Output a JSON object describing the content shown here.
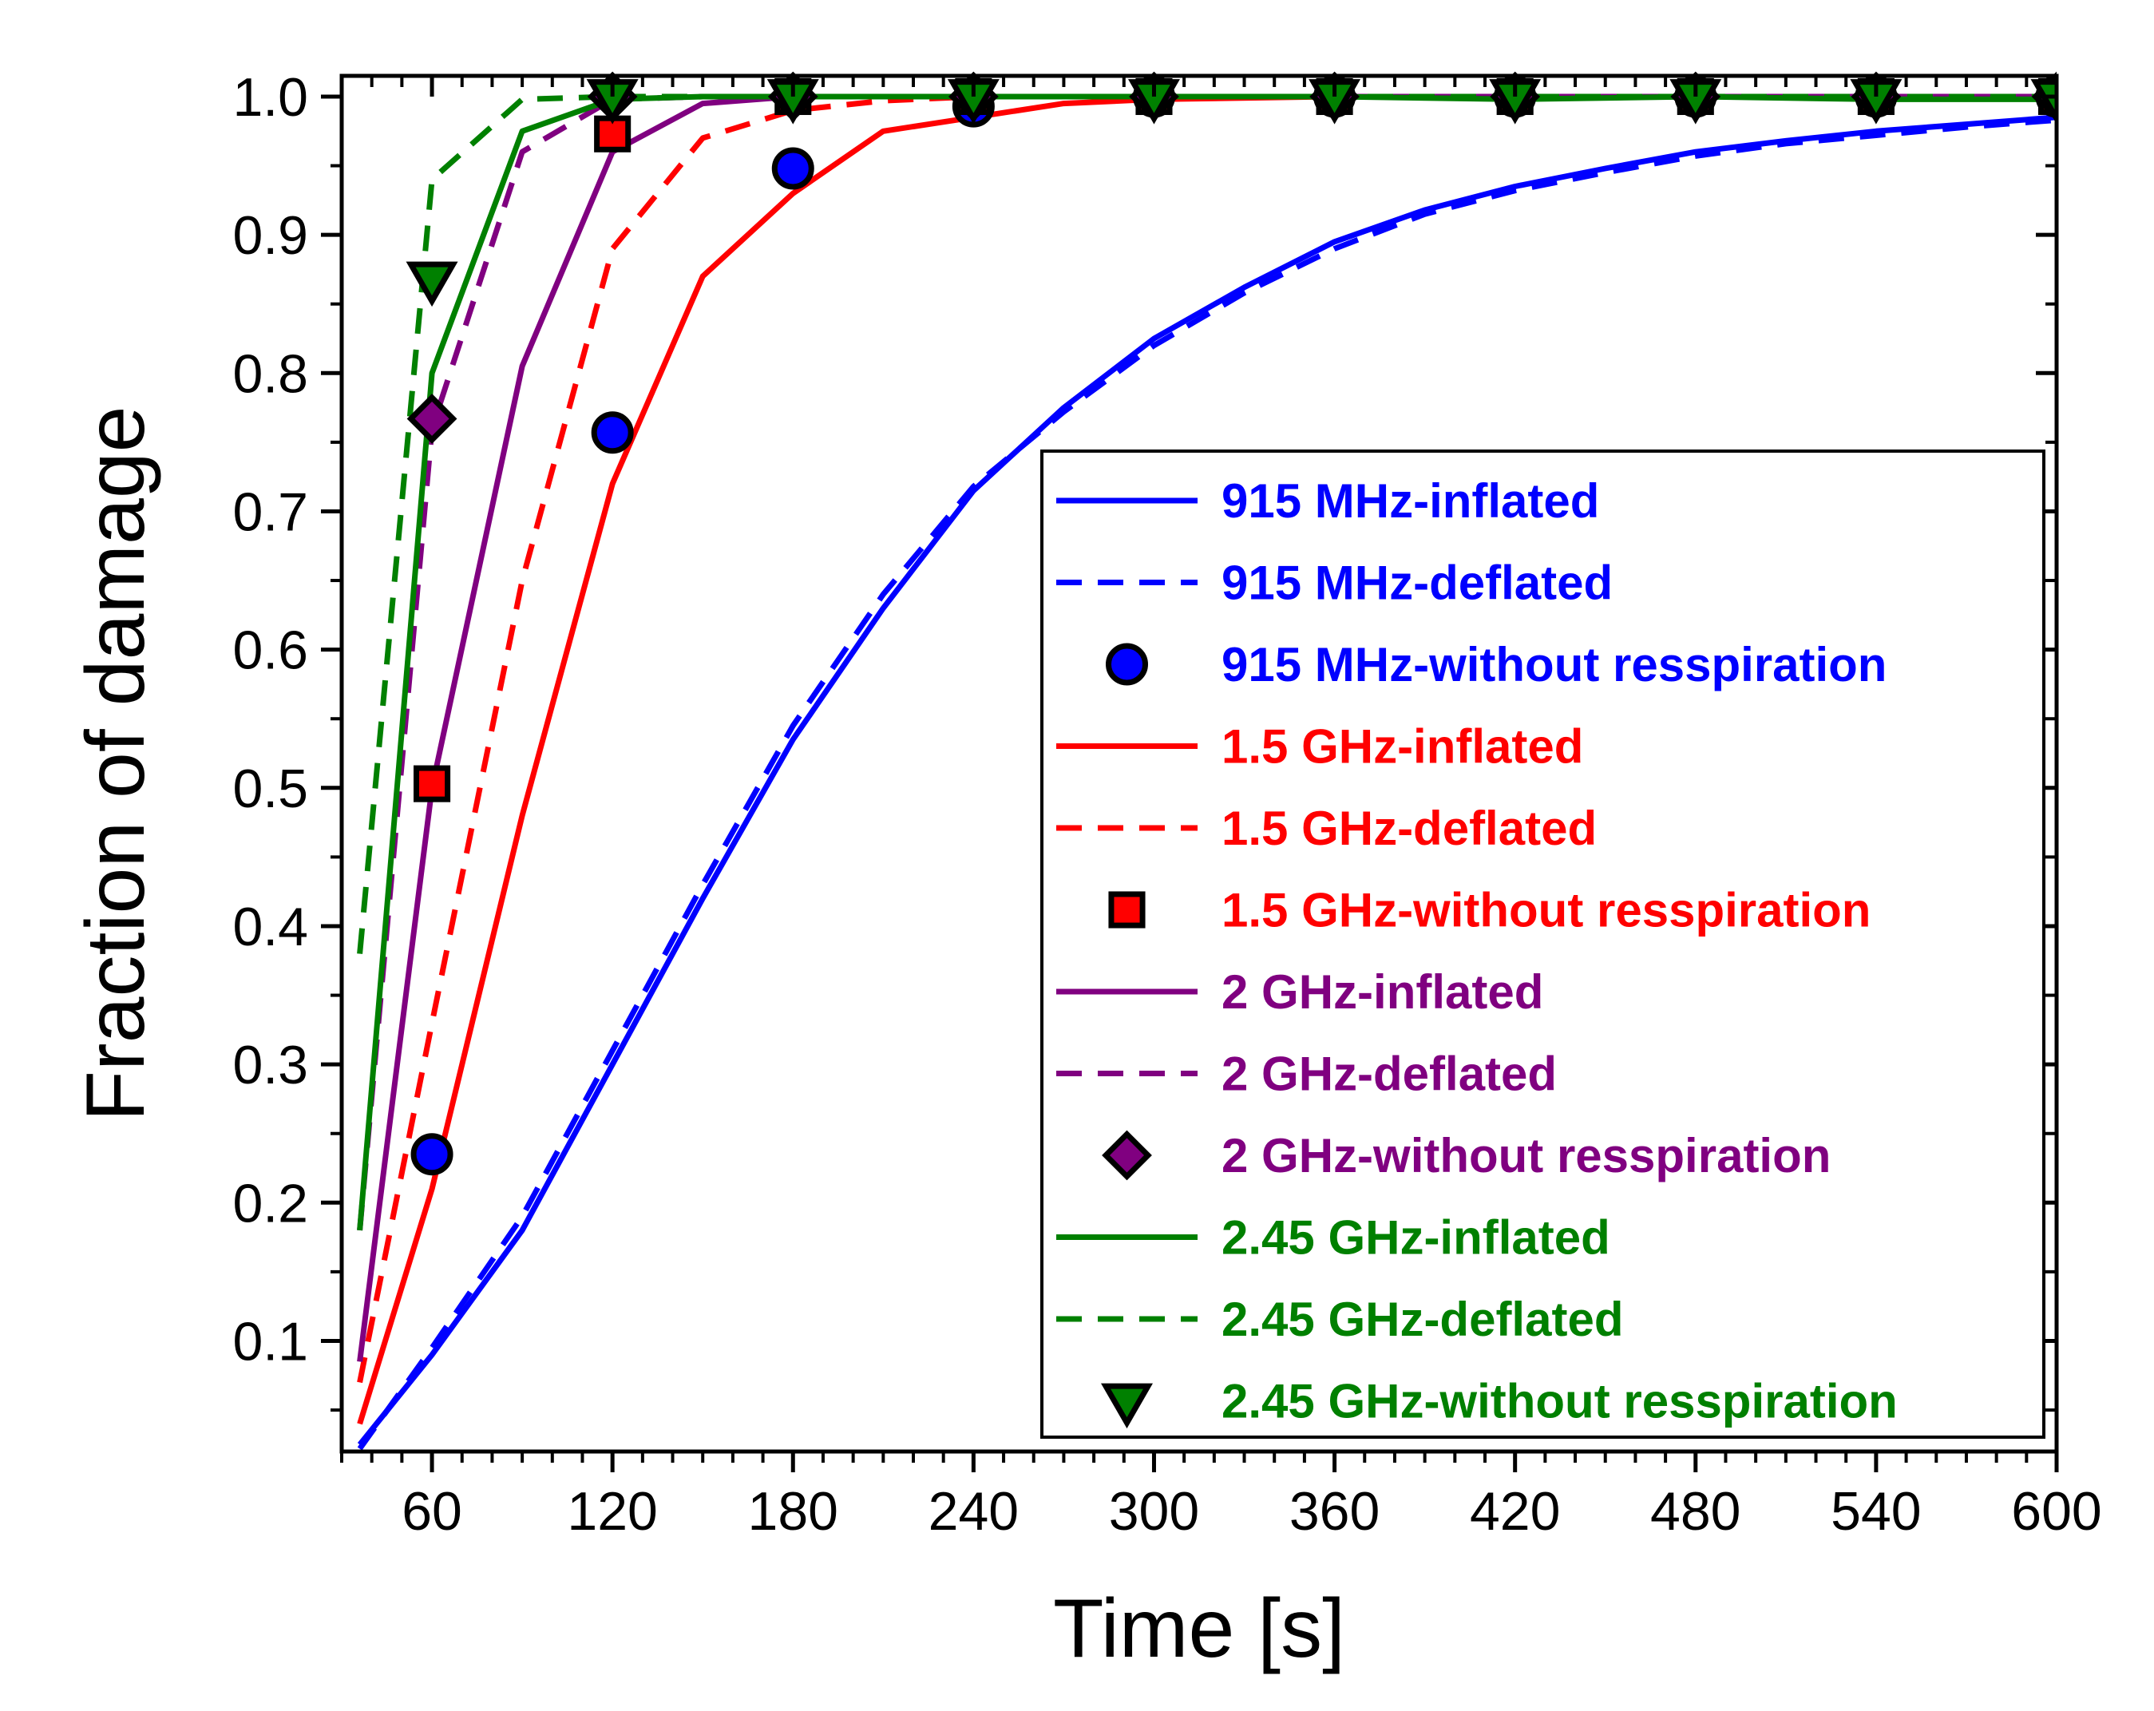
{
  "chart_data": {
    "type": "line",
    "title": "",
    "xlabel": "Time [s]",
    "ylabel": "Fraction of damage",
    "xlim": [
      30,
      600
    ],
    "ylim": [
      0.02,
      1.015
    ],
    "xticks": [
      60,
      120,
      180,
      240,
      300,
      360,
      420,
      480,
      540,
      600
    ],
    "xtick_labels": [
      "60",
      "120",
      "180",
      "240",
      "300",
      "360",
      "420",
      "480",
      "540",
      "600"
    ],
    "yticks": [
      0.1,
      0.2,
      0.3,
      0.4,
      0.5,
      0.6,
      0.7,
      0.8,
      0.9,
      1.0
    ],
    "ytick_labels": [
      "0.1",
      "0.2",
      "0.3",
      "0.4",
      "0.5",
      "0.6",
      "0.7",
      "0.8",
      "0.9",
      "1.0"
    ],
    "grid": false,
    "legend_position": "right",
    "series": [
      {
        "name": "915 MHz-inflated",
        "color": "#0000ff",
        "style": "solid",
        "x": [
          36,
          60,
          90,
          120,
          150,
          180,
          210,
          240,
          270,
          300,
          330,
          360,
          390,
          420,
          450,
          480,
          510,
          540,
          570,
          600
        ],
        "y": [
          0.025,
          0.09,
          0.18,
          0.3,
          0.42,
          0.535,
          0.63,
          0.715,
          0.775,
          0.825,
          0.862,
          0.895,
          0.918,
          0.935,
          0.948,
          0.96,
          0.968,
          0.975,
          0.98,
          0.985
        ]
      },
      {
        "name": "915 MHz-deflated",
        "color": "#0000ff",
        "style": "dashed",
        "x": [
          36,
          60,
          90,
          120,
          150,
          180,
          210,
          240,
          270,
          300,
          330,
          360,
          390,
          420,
          450,
          480,
          510,
          540,
          570,
          600
        ],
        "y": [
          0.022,
          0.095,
          0.19,
          0.31,
          0.43,
          0.545,
          0.64,
          0.718,
          0.772,
          0.82,
          0.858,
          0.89,
          0.915,
          0.932,
          0.945,
          0.957,
          0.966,
          0.972,
          0.978,
          0.983
        ]
      },
      {
        "name": "915 MHz-without resspiration",
        "color": "#0000ff",
        "style": "marker",
        "marker": "circle",
        "x": [
          60,
          120,
          180,
          240,
          300,
          360,
          420,
          480,
          540,
          600
        ],
        "y": [
          0.235,
          0.757,
          0.948,
          0.993,
          1.0,
          1.0,
          1.0,
          1.0,
          1.0,
          1.0
        ]
      },
      {
        "name": "1.5 GHz-inflated",
        "color": "#ff0000",
        "style": "solid",
        "x": [
          36,
          60,
          90,
          120,
          150,
          180,
          210,
          240,
          270,
          300,
          360,
          420,
          480,
          540,
          600
        ],
        "y": [
          0.04,
          0.21,
          0.48,
          0.72,
          0.87,
          0.93,
          0.975,
          0.985,
          0.995,
          0.998,
          1.0,
          1.0,
          1.0,
          1.0,
          1.0
        ]
      },
      {
        "name": "1.5 GHz-deflated",
        "color": "#ff0000",
        "style": "dashed",
        "x": [
          36,
          60,
          90,
          120,
          150,
          180,
          210,
          240,
          300,
          360,
          420,
          480,
          540,
          600
        ],
        "y": [
          0.07,
          0.33,
          0.65,
          0.89,
          0.97,
          0.99,
          0.997,
          1.0,
          1.0,
          1.0,
          1.0,
          1.0,
          1.0,
          1.0
        ]
      },
      {
        "name": "1.5 GHz-without resspiration",
        "color": "#ff0000",
        "style": "marker",
        "marker": "square",
        "x": [
          60,
          120,
          180,
          240,
          300,
          360,
          420,
          480,
          540,
          600
        ],
        "y": [
          0.503,
          0.973,
          1.0,
          1.0,
          1.0,
          1.0,
          1.0,
          1.0,
          1.0,
          1.0
        ]
      },
      {
        "name": "2 GHz-inflated",
        "color": "#800080",
        "style": "solid",
        "x": [
          36,
          60,
          90,
          120,
          150,
          180,
          240,
          300,
          360,
          420,
          480,
          540,
          600
        ],
        "y": [
          0.085,
          0.5,
          0.805,
          0.96,
          0.995,
          1.0,
          1.0,
          1.0,
          1.0,
          1.0,
          1.0,
          1.0,
          1.0
        ]
      },
      {
        "name": "2 GHz-deflated",
        "color": "#800080",
        "style": "dashed",
        "x": [
          36,
          60,
          90,
          120,
          150,
          180,
          240,
          300,
          360,
          420,
          480,
          540,
          600
        ],
        "y": [
          0.18,
          0.76,
          0.96,
          0.998,
          1.0,
          1.0,
          1.0,
          1.0,
          1.0,
          1.0,
          1.0,
          1.0,
          1.0
        ]
      },
      {
        "name": "2 GHz-without resspiration",
        "color": "#800080",
        "style": "marker",
        "marker": "diamond",
        "x": [
          60,
          120,
          180,
          240,
          300,
          360,
          420,
          480,
          540,
          600
        ],
        "y": [
          0.767,
          1.0,
          1.0,
          1.0,
          1.0,
          1.0,
          1.0,
          1.0,
          1.0,
          1.0
        ]
      },
      {
        "name": "2.45 GHz-inflated",
        "color": "#008000",
        "style": "solid",
        "x": [
          36,
          60,
          90,
          120,
          150,
          180,
          240,
          300,
          360,
          420,
          480,
          540,
          600
        ],
        "y": [
          0.18,
          0.8,
          0.975,
          0.998,
          1.0,
          1.0,
          1.0,
          1.0,
          1.0,
          0.998,
          1.0,
          0.998,
          0.998
        ]
      },
      {
        "name": "2.45 GHz-deflated",
        "color": "#008000",
        "style": "dashed",
        "x": [
          36,
          60,
          90,
          120,
          150,
          180,
          240,
          300,
          360,
          420,
          480,
          540,
          600
        ],
        "y": [
          0.38,
          0.94,
          0.998,
          1.0,
          1.0,
          1.0,
          1.0,
          1.0,
          1.0,
          1.0,
          1.0,
          1.0,
          1.0
        ]
      },
      {
        "name": "2.45 GHz-without resspiration",
        "color": "#008000",
        "style": "marker",
        "marker": "triangle-down",
        "x": [
          60,
          120,
          180,
          240,
          300,
          360,
          420,
          480,
          540,
          600
        ],
        "y": [
          0.868,
          1.0,
          1.0,
          1.0,
          1.0,
          1.0,
          1.0,
          1.0,
          1.0,
          1.0
        ]
      }
    ]
  }
}
